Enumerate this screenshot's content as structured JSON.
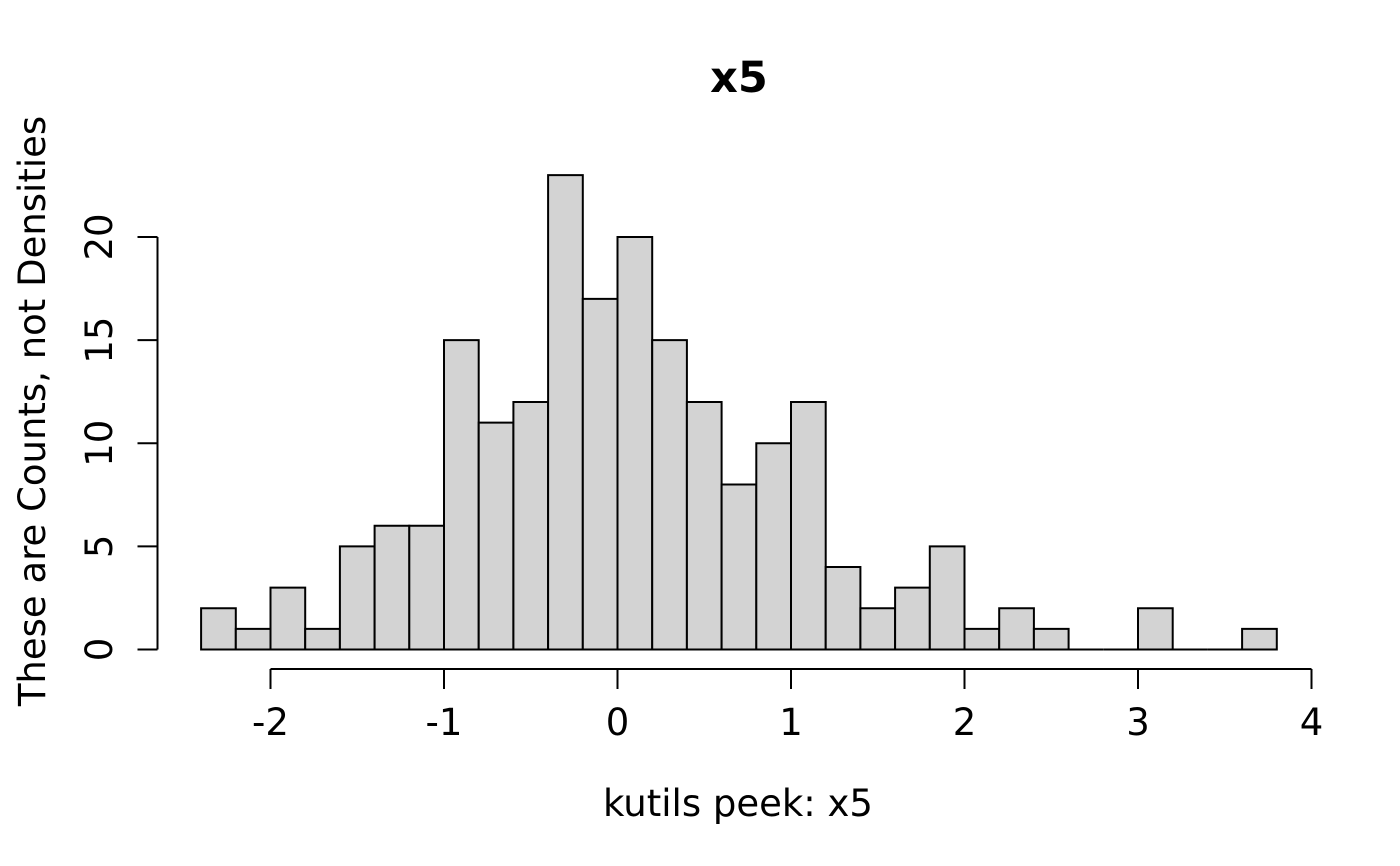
{
  "chart_data": {
    "type": "bar",
    "subtype": "histogram",
    "title": "x5",
    "xlabel": "kutils peek: x5",
    "ylabel": "These are Counts, not Densities",
    "bin_width": 0.2,
    "breaks": [
      -2.4,
      -2.2,
      -2.0,
      -1.8,
      -1.6,
      -1.4,
      -1.2,
      -1.0,
      -0.8,
      -0.6,
      -0.4,
      -0.2,
      0.0,
      0.2,
      0.4,
      0.6,
      0.8,
      1.0,
      1.2,
      1.4,
      1.6,
      1.8,
      2.0,
      2.2,
      2.4,
      2.6,
      2.8,
      3.0,
      3.2,
      3.4,
      3.6,
      3.8
    ],
    "counts": [
      2,
      1,
      3,
      1,
      5,
      6,
      6,
      15,
      11,
      12,
      23,
      17,
      20,
      15,
      12,
      8,
      10,
      12,
      4,
      2,
      3,
      5,
      1,
      2,
      1,
      0,
      0,
      2,
      0,
      0,
      1
    ],
    "x_ticks": [
      -2,
      -1,
      0,
      1,
      2,
      3,
      4
    ],
    "y_ticks": [
      0,
      5,
      10,
      15,
      20
    ],
    "x_tick_range": [
      -2,
      4
    ],
    "y_tick_range": [
      0,
      20
    ],
    "grid": "off",
    "legend": "none",
    "colors": {
      "bar_fill": "#d3d3d3",
      "bar_stroke": "#000000",
      "axis": "#000000",
      "text": "#000000",
      "background": "#ffffff"
    }
  }
}
